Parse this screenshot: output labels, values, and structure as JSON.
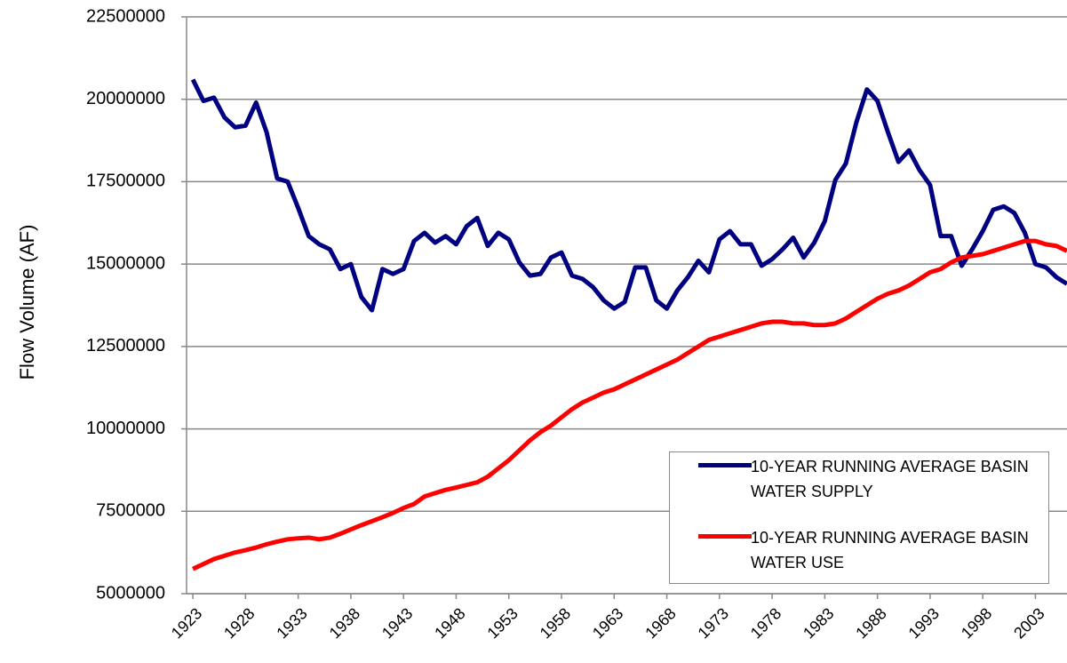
{
  "chart_data": {
    "type": "line",
    "y_label": "Flow Volume (AF)",
    "x": [
      1923,
      1924,
      1925,
      1926,
      1927,
      1928,
      1929,
      1930,
      1931,
      1932,
      1933,
      1934,
      1935,
      1936,
      1937,
      1938,
      1939,
      1940,
      1941,
      1942,
      1943,
      1944,
      1945,
      1946,
      1947,
      1948,
      1949,
      1950,
      1951,
      1952,
      1953,
      1954,
      1955,
      1956,
      1957,
      1958,
      1959,
      1960,
      1961,
      1962,
      1963,
      1964,
      1965,
      1966,
      1967,
      1968,
      1969,
      1970,
      1971,
      1972,
      1973,
      1974,
      1975,
      1976,
      1977,
      1978,
      1979,
      1980,
      1981,
      1982,
      1983,
      1984,
      1985,
      1986,
      1987,
      1988,
      1989,
      1990,
      1991,
      1992,
      1993,
      1994,
      1995,
      1996,
      1997,
      1998,
      1999,
      2000,
      2001,
      2002,
      2003,
      2004,
      2005,
      2006
    ],
    "series": [
      {
        "name": "10-YEAR RUNNING AVERAGE BASIN WATER SUPPLY",
        "color": "#000080",
        "values": [
          20600000,
          19950000,
          20050000,
          19450000,
          19150000,
          19200000,
          19900000,
          19000000,
          17600000,
          17500000,
          16700000,
          15850000,
          15600000,
          15450000,
          14850000,
          15000000,
          14000000,
          13600000,
          14850000,
          14700000,
          14850000,
          15700000,
          15950000,
          15650000,
          15850000,
          15600000,
          16150000,
          16400000,
          15550000,
          15950000,
          15750000,
          15050000,
          14650000,
          14700000,
          15200000,
          15350000,
          14650000,
          14550000,
          14300000,
          13900000,
          13650000,
          13850000,
          14900000,
          14900000,
          13900000,
          13650000,
          14200000,
          14600000,
          15100000,
          14750000,
          15750000,
          16000000,
          15600000,
          15600000,
          14950000,
          15150000,
          15450000,
          15800000,
          15200000,
          15650000,
          16300000,
          17550000,
          18050000,
          19300000,
          20300000,
          19950000,
          19000000,
          18100000,
          18450000,
          17850000,
          17400000,
          15850000,
          15850000,
          14950000,
          15450000,
          16000000,
          16650000,
          16750000,
          16550000,
          15950000,
          15000000,
          14900000,
          14600000,
          14400000
        ]
      },
      {
        "name": "10-YEAR RUNNING AVERAGE BASIN WATER USE",
        "color": "#ff0000",
        "values": [
          5750000,
          5900000,
          6050000,
          6150000,
          6250000,
          6320000,
          6400000,
          6500000,
          6580000,
          6650000,
          6680000,
          6700000,
          6650000,
          6700000,
          6820000,
          6950000,
          7080000,
          7200000,
          7320000,
          7450000,
          7600000,
          7720000,
          7950000,
          8050000,
          8150000,
          8220000,
          8300000,
          8380000,
          8550000,
          8800000,
          9050000,
          9350000,
          9650000,
          9900000,
          10100000,
          10350000,
          10600000,
          10800000,
          10950000,
          11100000,
          11200000,
          11350000,
          11500000,
          11650000,
          11800000,
          11950000,
          12100000,
          12300000,
          12500000,
          12700000,
          12800000,
          12900000,
          13000000,
          13100000,
          13200000,
          13250000,
          13250000,
          13200000,
          13200000,
          13150000,
          13150000,
          13200000,
          13350000,
          13550000,
          13750000,
          13950000,
          14100000,
          14200000,
          14350000,
          14550000,
          14750000,
          14850000,
          15050000,
          15200000,
          15250000,
          15300000,
          15400000,
          15500000,
          15600000,
          15700000,
          15700000,
          15600000,
          15550000,
          15400000
        ]
      }
    ],
    "xlim": [
      1922.4,
      2006
    ],
    "xticks": [
      1923,
      1928,
      1933,
      1938,
      1943,
      1948,
      1953,
      1958,
      1963,
      1968,
      1973,
      1978,
      1983,
      1988,
      1993,
      1998,
      2003
    ],
    "ylim": [
      5000000,
      22500000
    ],
    "yticks": [
      5000000,
      7500000,
      10000000,
      12500000,
      15000000,
      17500000,
      20000000,
      22500000
    ],
    "grid": true
  }
}
